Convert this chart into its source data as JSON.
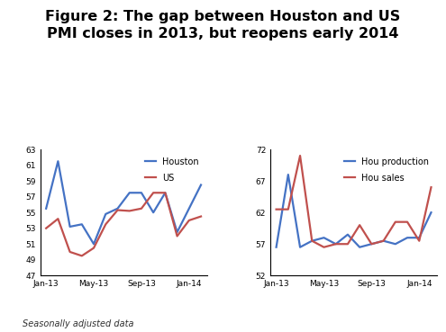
{
  "title": "Figure 2: The gap between Houston and US\nPMI closes in 2013, but reopens early 2014",
  "title_fontsize": 11.5,
  "footnote": "Seasonally adjusted data",
  "left_chart": {
    "x_labels": [
      "Jan-13",
      "May-13",
      "Sep-13",
      "Jan-14"
    ],
    "ylim": [
      47,
      63
    ],
    "yticks": [
      47,
      49,
      51,
      53,
      55,
      57,
      59,
      61,
      63
    ],
    "houston": [
      55.5,
      61.5,
      53.2,
      53.5,
      51.0,
      54.8,
      55.5,
      57.5,
      57.5,
      55.0,
      57.5,
      52.5,
      55.5,
      58.5
    ],
    "us": [
      53.0,
      54.2,
      50.0,
      49.5,
      50.5,
      53.5,
      55.3,
      55.2,
      55.5,
      57.5,
      57.5,
      52.0,
      54.0,
      54.5
    ],
    "houston_color": "#4472C4",
    "us_color": "#C0504D",
    "legend_houston": "Houston",
    "legend_us": "US"
  },
  "right_chart": {
    "x_labels": [
      "Jan-13",
      "May-13",
      "Sep-13",
      "Jan-14"
    ],
    "ylim": [
      52,
      72
    ],
    "yticks": [
      52,
      57,
      62,
      67,
      72
    ],
    "hou_production": [
      56.5,
      68.0,
      56.5,
      57.5,
      58.0,
      57.0,
      58.5,
      56.5,
      57.0,
      57.5,
      57.0,
      58.0,
      58.0,
      62.0
    ],
    "hou_sales": [
      62.5,
      62.5,
      71.0,
      57.5,
      56.5,
      57.0,
      57.0,
      60.0,
      57.0,
      57.5,
      60.5,
      60.5,
      57.5,
      66.0
    ],
    "hou_production_color": "#4472C4",
    "hou_sales_color": "#C0504D",
    "legend_production": "Hou production",
    "legend_sales": "Hou sales"
  }
}
